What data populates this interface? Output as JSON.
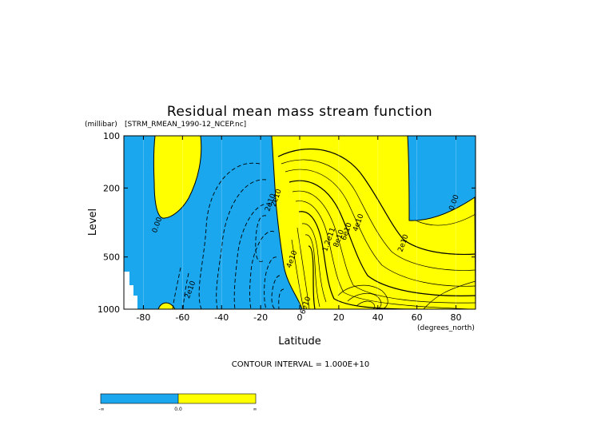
{
  "colors": {
    "negative": "#1aa7ee",
    "positive": "#ffff00",
    "line": "#000000"
  },
  "chart_data": {
    "type": "contour",
    "title": "Residual mean mass stream function",
    "subtitle": "[STRM_RMEAN_1990-12_NCEP.nc]",
    "xlabel": "Latitude",
    "xunits": "(degrees_north)",
    "ylabel": "Level",
    "yunits": "(millibar)",
    "xlim": [
      -90,
      90
    ],
    "ylim": [
      1000,
      100
    ],
    "yscale": "log",
    "x_ticks": [
      -80,
      -60,
      -40,
      -20,
      0,
      20,
      40,
      60,
      80
    ],
    "x_tick_labels": [
      "-80",
      "-60",
      "-40",
      "-20",
      "0",
      "20",
      "40",
      "60",
      "80"
    ],
    "y_ticks": [
      100,
      200,
      500,
      1000
    ],
    "y_tick_labels": [
      "100",
      "200",
      "500",
      "1000"
    ],
    "contour_interval_text": "CONTOUR INTERVAL = 1.000E+10",
    "contour_labels": [
      {
        "text": "0.00",
        "lat": -72,
        "p": 330
      },
      {
        "text": "2e10",
        "lat": -55,
        "p": 780
      },
      {
        "text": "2e10",
        "lat": -11,
        "p": 230
      },
      {
        "text": "2e10",
        "lat": -14,
        "p": 245
      },
      {
        "text": "4e10",
        "lat": -3,
        "p": 520
      },
      {
        "text": "6e10",
        "lat": 4,
        "p": 960
      },
      {
        "text": "4e10",
        "lat": 31,
        "p": 320
      },
      {
        "text": "6e10",
        "lat": 25,
        "p": 360
      },
      {
        "text": "8e10",
        "lat": 21,
        "p": 395
      },
      {
        "text": "1.2e11",
        "lat": 16,
        "p": 400
      },
      {
        "text": "2e10",
        "lat": 54,
        "p": 420
      },
      {
        "text": "0.00",
        "lat": 80,
        "p": 245
      }
    ],
    "regions": "positive stream function (yellow) north of about 5S and in a Southern-Hemisphere upper lobe; negative (blue) elsewhere",
    "colorbar": {
      "labels": [
        "-∞",
        "0.0",
        "∞"
      ]
    }
  }
}
